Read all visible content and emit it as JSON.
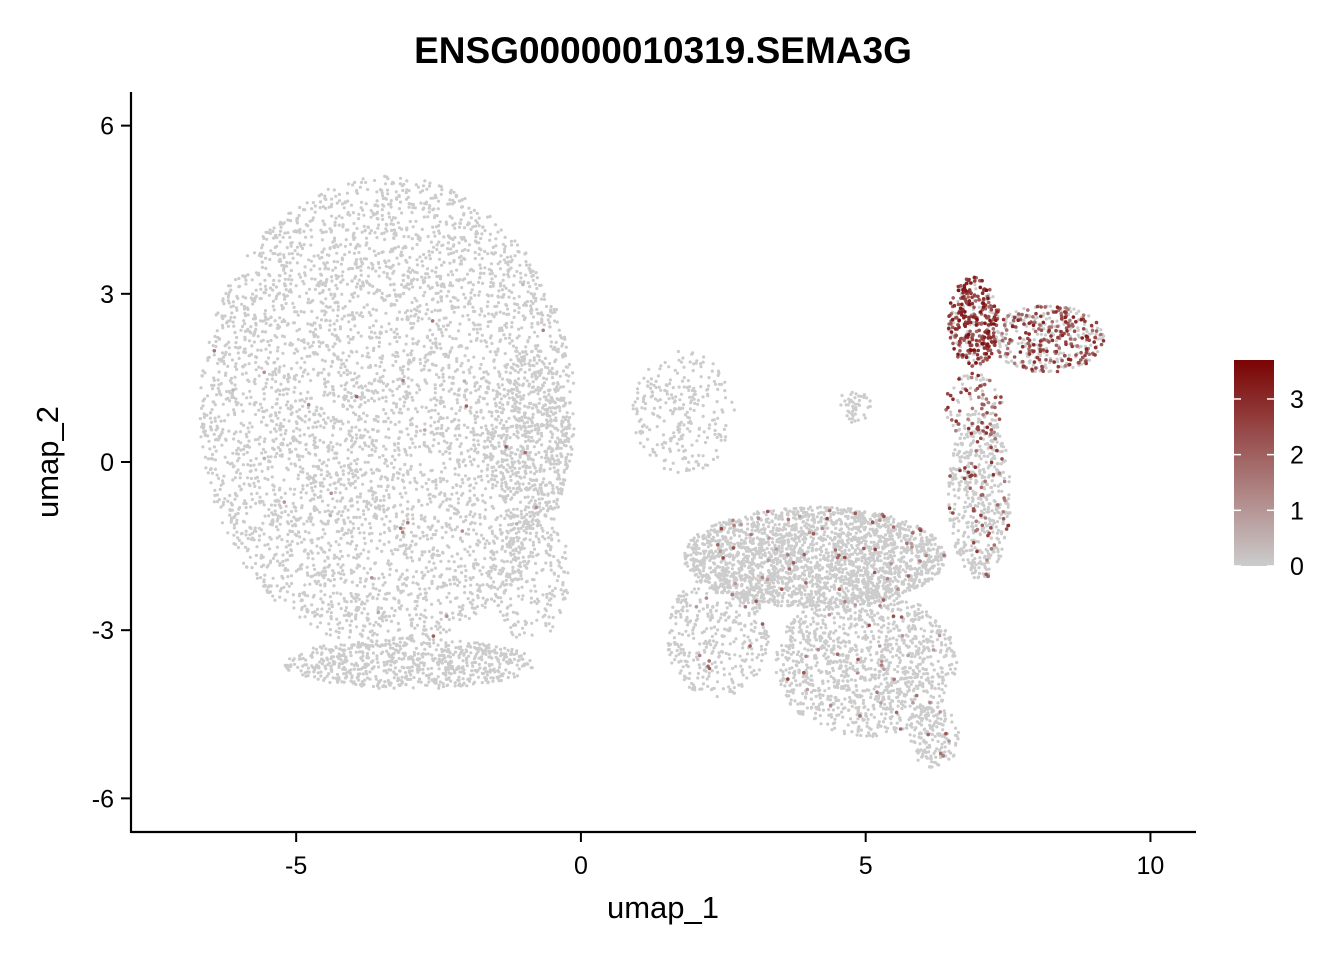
{
  "chart_data": {
    "type": "scatter",
    "title": "ENSG00000010319.SEMA3G",
    "xlabel": "umap_1",
    "ylabel": "umap_2",
    "xlim": [
      -7.9,
      10.8
    ],
    "ylim": [
      -6.6,
      6.6
    ],
    "x_ticks": [
      -5,
      0,
      5,
      10
    ],
    "x_tick_labels": [
      "-5",
      "0",
      "5",
      "10"
    ],
    "y_ticks": [
      -6,
      -3,
      0,
      3,
      6
    ],
    "y_tick_labels": [
      "-6",
      "-3",
      "0",
      "3",
      "6"
    ],
    "point_color_low": "#cccccc",
    "point_color_high": "#7a0403",
    "grid": false,
    "legend": {
      "placement": "right",
      "min": 0,
      "max": 3.7,
      "ticks": [
        0,
        1,
        2,
        3
      ],
      "tick_labels": [
        "0",
        "1",
        "2",
        "3"
      ]
    },
    "clusters": [
      {
        "cx": -3.4,
        "cy": 0.9,
        "rx": 3.3,
        "ry": 4.2,
        "n": 4600,
        "expr_rate": 0.006,
        "expr_mean": 1.2
      },
      {
        "cx": -3.0,
        "cy": -3.6,
        "rx": 2.2,
        "ry": 0.45,
        "n": 700,
        "expr_rate": 0.004,
        "expr_mean": 1.0
      },
      {
        "cx": -0.9,
        "cy": 0.4,
        "rx": 0.7,
        "ry": 1.6,
        "n": 450,
        "expr_rate": 0.0,
        "expr_mean": 0.0
      },
      {
        "cx": -0.9,
        "cy": -2.0,
        "rx": 0.7,
        "ry": 1.2,
        "n": 220,
        "expr_rate": 0.0,
        "expr_mean": 0.0
      },
      {
        "cx": 1.8,
        "cy": 0.9,
        "rx": 0.9,
        "ry": 1.1,
        "n": 260,
        "expr_rate": 0.0,
        "expr_mean": 0.0
      },
      {
        "cx": 4.1,
        "cy": -1.7,
        "rx": 2.3,
        "ry": 0.9,
        "n": 2300,
        "expr_rate": 0.03,
        "expr_mean": 1.7
      },
      {
        "cx": 5.0,
        "cy": -3.6,
        "rx": 1.6,
        "ry": 1.3,
        "n": 1200,
        "expr_rate": 0.03,
        "expr_mean": 1.6
      },
      {
        "cx": 6.2,
        "cy": -4.9,
        "rx": 0.45,
        "ry": 0.55,
        "n": 160,
        "expr_rate": 0.04,
        "expr_mean": 1.7
      },
      {
        "cx": 2.4,
        "cy": -3.1,
        "rx": 0.9,
        "ry": 1.1,
        "n": 380,
        "expr_rate": 0.02,
        "expr_mean": 1.5
      },
      {
        "cx": 7.0,
        "cy": -0.6,
        "rx": 0.55,
        "ry": 1.5,
        "n": 550,
        "expr_rate": 0.1,
        "expr_mean": 2.0
      },
      {
        "cx": 6.9,
        "cy": 2.5,
        "rx": 0.45,
        "ry": 0.8,
        "n": 330,
        "expr_rate": 0.75,
        "expr_mean": 2.6
      },
      {
        "cx": 8.2,
        "cy": 2.2,
        "rx": 1.0,
        "ry": 0.6,
        "n": 430,
        "expr_rate": 0.45,
        "expr_mean": 2.3
      },
      {
        "cx": 6.9,
        "cy": 1.0,
        "rx": 0.5,
        "ry": 0.6,
        "n": 120,
        "expr_rate": 0.35,
        "expr_mean": 2.2
      },
      {
        "cx": 4.8,
        "cy": 1.0,
        "rx": 0.3,
        "ry": 0.3,
        "n": 45,
        "expr_rate": 0.0,
        "expr_mean": 0.0
      }
    ]
  }
}
